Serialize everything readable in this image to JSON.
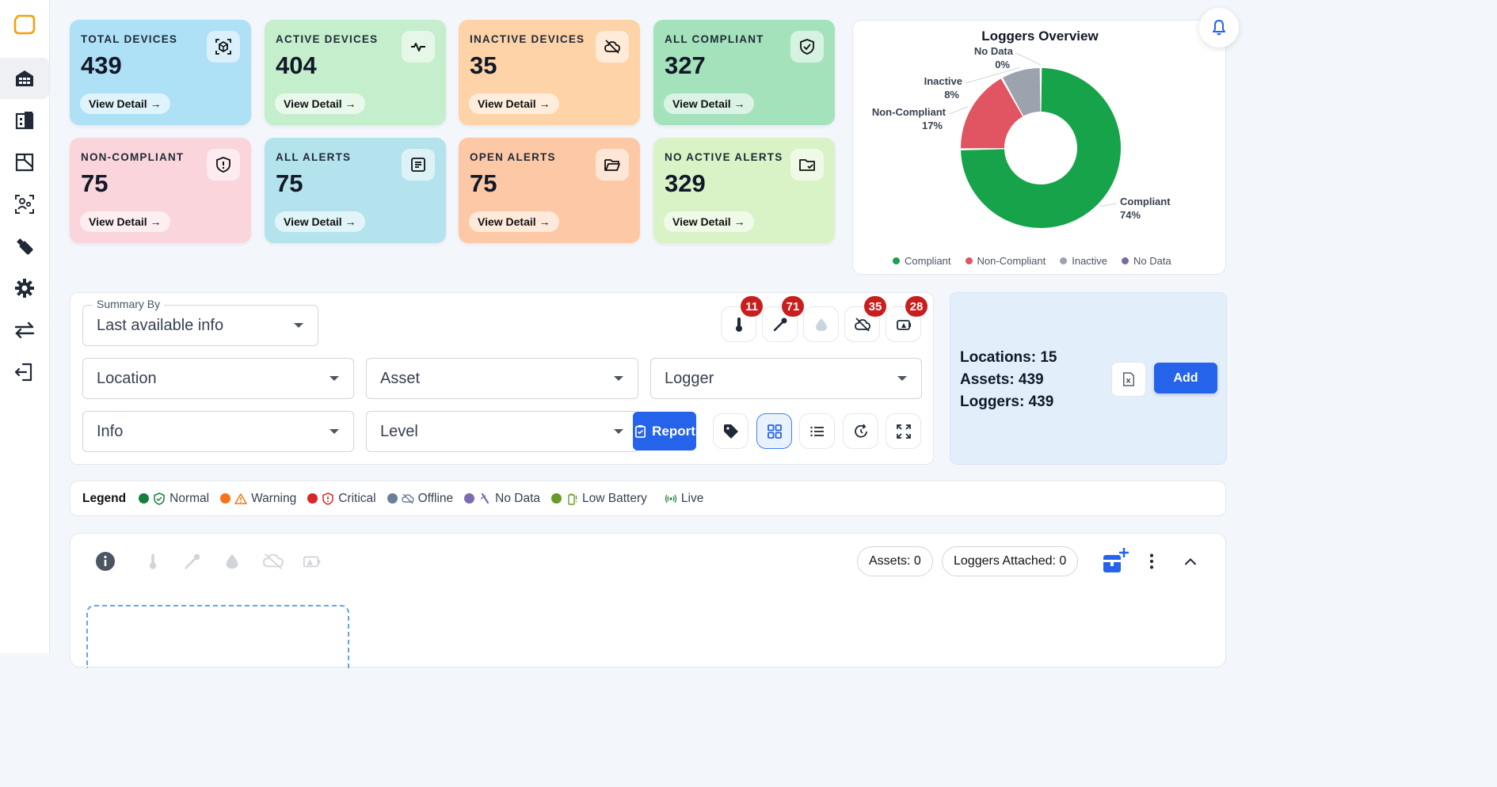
{
  "sidebar": {
    "logo_icon": "app-logo-icon",
    "items": [
      {
        "icon": "warehouse-icon",
        "active": true
      },
      {
        "icon": "building-icon",
        "active": false
      },
      {
        "icon": "floorplan-icon",
        "active": false
      },
      {
        "icon": "user-scan-icon",
        "active": false
      },
      {
        "icon": "usb-logger-icon",
        "active": false
      },
      {
        "icon": "gear-icon",
        "active": false
      },
      {
        "icon": "transfer-arrows-icon",
        "active": false
      },
      {
        "icon": "logout-icon",
        "active": false
      }
    ]
  },
  "cards": [
    {
      "title": "TOTAL DEVICES",
      "value": "439",
      "link": "View Detail →",
      "icon": "device-scan-icon",
      "bg": "#aee0f6"
    },
    {
      "title": "ACTIVE DEVICES",
      "value": "404",
      "link": "View Detail →",
      "icon": "pulse-icon",
      "bg": "#c5efcc"
    },
    {
      "title": "INACTIVE DEVICES",
      "value": "35",
      "link": "View Detail →",
      "icon": "cloud-off-icon",
      "bg": "#fed3a8"
    },
    {
      "title": "ALL COMPLIANT",
      "value": "327",
      "link": "View Detail →",
      "icon": "shield-check-icon",
      "bg": "#a4e2bb"
    },
    {
      "title": "NON-COMPLIANT",
      "value": "75",
      "link": "View Detail →",
      "icon": "shield-alert-icon",
      "bg": "#fbd5dc"
    },
    {
      "title": "ALL ALERTS",
      "value": "75",
      "link": "View Detail →",
      "icon": "alert-list-icon",
      "bg": "#b4e3ee"
    },
    {
      "title": "OPEN ALERTS",
      "value": "75",
      "link": "View Detail →",
      "icon": "folder-open-icon",
      "bg": "#fdc8a6"
    },
    {
      "title": "NO ACTIVE ALERTS",
      "value": "329",
      "link": "View Detail →",
      "icon": "folder-check-icon",
      "bg": "#d9f3c6"
    }
  ],
  "chart_data": {
    "type": "pie",
    "title": "Loggers Overview",
    "categories": [
      "Compliant",
      "Non-Compliant",
      "Inactive",
      "No Data"
    ],
    "values": [
      74,
      17,
      8,
      0
    ],
    "value_labels": [
      "74%",
      "17%",
      "8%",
      "0%"
    ],
    "colors": [
      "#16a34a",
      "#e05561",
      "#9ca3af",
      "#7b6aa6"
    ],
    "donut": true,
    "legend_position": "bottom"
  },
  "bell_icon": "bell-icon",
  "filters": {
    "summary_by_label": "Summary By",
    "summary_by_value": "Last available info",
    "location": "Location",
    "asset": "Asset",
    "logger": "Logger",
    "info": "Info",
    "level": "Level",
    "report_label": "Report"
  },
  "alert_buttons": [
    {
      "icon": "thermometer-icon",
      "count": "11"
    },
    {
      "icon": "probe-icon",
      "count": "71"
    },
    {
      "icon": "humidity-drop-icon",
      "count": ""
    },
    {
      "icon": "cloud-off-icon",
      "count": "35"
    },
    {
      "icon": "battery-alert-icon",
      "count": "28"
    }
  ],
  "view_buttons": [
    "tag-icon",
    "grid-view-icon",
    "list-view-icon",
    "refresh-icon",
    "expand-icon"
  ],
  "summary": {
    "locations": "Locations: 15",
    "assets": "Assets: 439",
    "loggers": "Loggers: 439",
    "add_label": "Add",
    "excel_icon": "excel-export-icon"
  },
  "legend": {
    "title": "Legend",
    "items": [
      {
        "label": "Normal",
        "color": "#15803d",
        "icon": "shield-check-icon"
      },
      {
        "label": "Warning",
        "color": "#f97316",
        "icon": "warning-triangle-icon"
      },
      {
        "label": "Critical",
        "color": "#dc2626",
        "icon": "shield-alert-icon"
      },
      {
        "label": "Offline",
        "color": "#6b7f99",
        "icon": "cloud-off-icon"
      },
      {
        "label": "No Data",
        "color": "#7c6bb0",
        "icon": "probe-off-icon"
      },
      {
        "label": "Low Battery",
        "color": "#6a9a2a",
        "icon": "battery-low-icon"
      },
      {
        "label": "Live",
        "color": "#15803d",
        "icon": "live-signal-icon"
      }
    ]
  },
  "bottom": {
    "assets_pill": "Assets: 0",
    "loggers_pill": "Loggers Attached: 0"
  }
}
